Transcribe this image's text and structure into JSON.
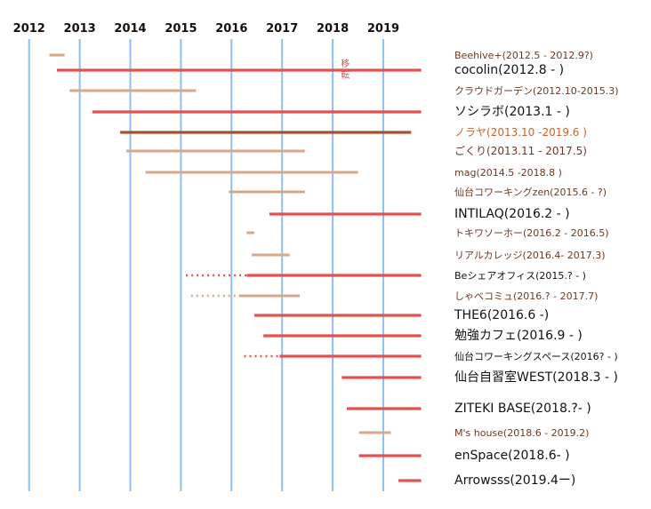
{
  "chart_data": {
    "type": "timeline",
    "title": "",
    "xlabel": "",
    "ylabel": "",
    "x_ticks": [
      2012,
      2013,
      2014,
      2015,
      2016,
      2017,
      2018,
      2019
    ],
    "xlim": [
      2011.6,
      2019.95
    ],
    "grid": true,
    "colors": {
      "red": "#e35252",
      "tan": "#d7a78a",
      "brown": "#a85030",
      "grid": "#8fbff2",
      "text_dark": "#111111",
      "text_brown": "#6b3a22",
      "text_orange": "#d0612d"
    },
    "annotation": {
      "lines": [
        "移",
        "転"
      ],
      "x": 2018.25,
      "color": "#e35252"
    },
    "rows": [
      {
        "label": "Beehive+(2012.5 - 2012.9?)",
        "start": 2012.4,
        "end": 2012.7,
        "color": "tan",
        "label_color": "text_brown",
        "size": "small"
      },
      {
        "label": "cocolin(2012.8 - )",
        "start": 2012.55,
        "end": 2019.75,
        "color": "red",
        "label_color": "text_dark",
        "size": "large"
      },
      {
        "label": "クラウドガーデン(2012.10-2015.3)",
        "start": 2012.8,
        "end": 2015.3,
        "color": "tan",
        "label_color": "text_brown",
        "size": "small"
      },
      {
        "label": "ソシラボ(2013.1 - )",
        "start": 2013.25,
        "end": 2019.75,
        "color": "red",
        "label_color": "text_dark",
        "size": "large"
      },
      {
        "label": "ノラヤ(2013.10 -2019.6 )",
        "start": 2013.8,
        "end": 2019.55,
        "color": "brown",
        "label_color": "text_orange",
        "size": "medium"
      },
      {
        "label": "ごくり(2013.11 - 2017.5)",
        "start": 2013.92,
        "end": 2017.45,
        "color": "tan",
        "label_color": "text_brown",
        "size": "medium"
      },
      {
        "label": "mag(2014.5 -2018.8 )",
        "start": 2014.3,
        "end": 2018.5,
        "color": "tan",
        "label_color": "text_brown",
        "size": "small"
      },
      {
        "label": "仙台コワーキングzen(2015.6 - ?)",
        "start": 2015.95,
        "end": 2017.45,
        "color": "tan",
        "label_color": "text_brown",
        "size": "small"
      },
      {
        "label": "INTILAQ(2016.2 - )",
        "start": 2016.75,
        "end": 2019.75,
        "color": "red",
        "label_color": "text_dark",
        "size": "large"
      },
      {
        "label": "トキワソーホー(2016.2 - 2016.5)",
        "start": 2016.3,
        "end": 2016.45,
        "color": "tan",
        "label_color": "text_brown",
        "size": "small"
      },
      {
        "label": "リアルカレッジ(2016.4- 2017.3)",
        "start": 2016.4,
        "end": 2017.15,
        "color": "tan",
        "label_color": "text_brown",
        "size": "small"
      },
      {
        "label": "Beシェアオフィス(2015.? - )",
        "start": 2016.3,
        "end": 2019.75,
        "dashed_from": 2015.1,
        "color": "red",
        "label_color": "text_dark",
        "size": "small"
      },
      {
        "label": "しゃべコミュ(2016.? - 2017.7)",
        "start": 2016.15,
        "end": 2017.35,
        "dashed_from": 2015.2,
        "color": "tan",
        "label_color": "text_brown",
        "size": "small"
      },
      {
        "label": "THE6(2016.6 -)",
        "start": 2016.45,
        "end": 2019.75,
        "color": "red",
        "label_color": "text_dark",
        "size": "large"
      },
      {
        "label": "勉強カフェ(2016.9 - )",
        "start": 2016.63,
        "end": 2019.75,
        "color": "red",
        "label_color": "text_dark",
        "size": "large"
      },
      {
        "label": "仙台コワーキングスペース(2016? - )",
        "start": 2016.95,
        "end": 2019.75,
        "dashed_from": 2016.25,
        "color": "red",
        "label_color": "text_dark",
        "size": "small"
      },
      {
        "label": "仙台自習室WEST(2018.3 - )",
        "start": 2018.18,
        "end": 2019.75,
        "color": "red",
        "label_color": "text_dark",
        "size": "large"
      },
      {
        "label": "ZITEKI BASE(2018.?- )",
        "start": 2018.28,
        "end": 2019.75,
        "color": "red",
        "label_color": "text_dark",
        "size": "large"
      },
      {
        "label": "M's house(2018.6 - 2019.2)",
        "start": 2018.52,
        "end": 2019.15,
        "color": "tan",
        "label_color": "text_brown",
        "size": "small"
      },
      {
        "label": "enSpace(2018.6- )",
        "start": 2018.52,
        "end": 2019.75,
        "color": "red",
        "label_color": "text_dark",
        "size": "large"
      },
      {
        "label": "Arrowsss(2019.4ー)",
        "start": 2019.3,
        "end": 2019.75,
        "color": "red",
        "label_color": "text_dark",
        "size": "large"
      }
    ]
  }
}
